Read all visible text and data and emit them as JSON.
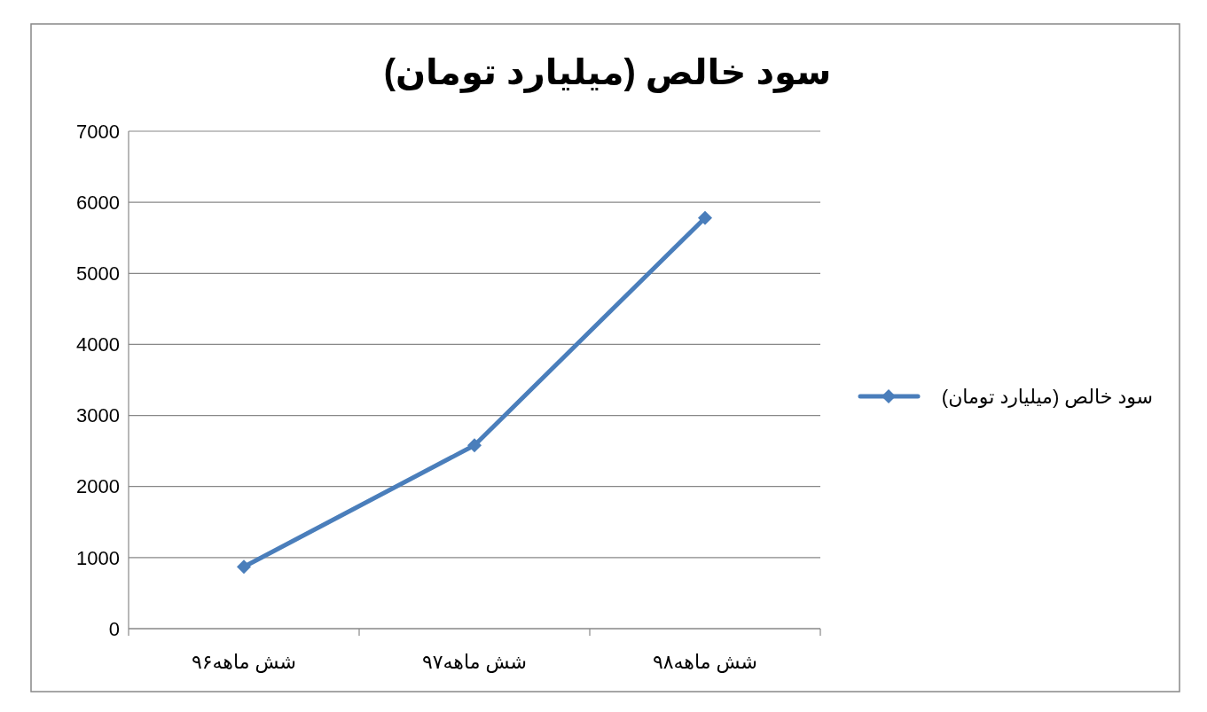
{
  "chart_data": {
    "type": "line",
    "title": "سود خالص (میلیارد تومان)",
    "categories": [
      "شش ماهه۹۶",
      "شش ماهه۹۷",
      "شش ماهه۹۸"
    ],
    "series": [
      {
        "name": "سود خالص (میلیارد تومان)",
        "color": "#4a7ebb",
        "values": [
          870,
          2580,
          5780
        ]
      }
    ],
    "ylim": [
      0,
      7000
    ],
    "yticks": [
      0,
      1000,
      2000,
      3000,
      4000,
      5000,
      6000,
      7000
    ],
    "grid": "y",
    "legend": "right",
    "marker": "diamond",
    "line_style": "solid"
  }
}
